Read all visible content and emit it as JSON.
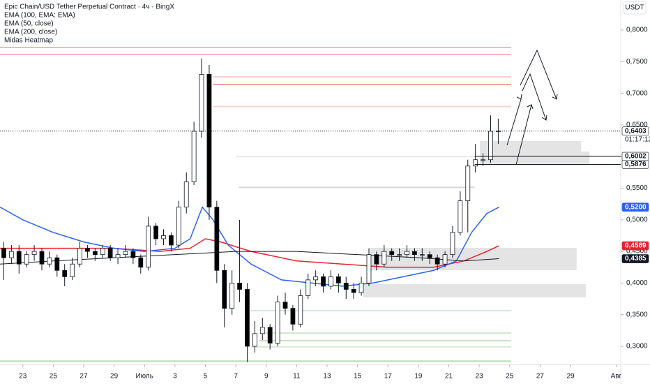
{
  "chart_data": {
    "type": "candlestick",
    "title": "Epic Chain/USD Tether Perpetual Contract · 4ч · BingX",
    "currency": "USDT",
    "xlim": [
      -1.5,
      39.3
    ],
    "ylim": [
      0.2735,
      0.8475
    ],
    "xticks": [
      {
        "value": 0,
        "label": "23"
      },
      {
        "value": 2,
        "label": "25"
      },
      {
        "value": 4,
        "label": "27"
      },
      {
        "value": 6,
        "label": "29"
      },
      {
        "value": 8,
        "label": "Июль"
      },
      {
        "value": 10,
        "label": "3"
      },
      {
        "value": 12,
        "label": "5"
      },
      {
        "value": 14,
        "label": "7"
      },
      {
        "value": 16,
        "label": "9"
      },
      {
        "value": 18,
        "label": "11"
      },
      {
        "value": 20,
        "label": "13"
      },
      {
        "value": 22,
        "label": "15"
      },
      {
        "value": 24,
        "label": "17"
      },
      {
        "value": 26,
        "label": "19"
      },
      {
        "value": 28,
        "label": "21"
      },
      {
        "value": 30,
        "label": "23"
      },
      {
        "value": 32,
        "label": "25"
      },
      {
        "value": 34,
        "label": "27"
      },
      {
        "value": 36,
        "label": "29"
      },
      {
        "value": 39,
        "label": "Авг"
      }
    ],
    "yticks": [
      {
        "value": 0.3,
        "label": "0,3000"
      },
      {
        "value": 0.35,
        "label": "0,3500"
      },
      {
        "value": 0.4,
        "label": "0,4000"
      },
      {
        "value": 0.45,
        "label": "0,4500"
      },
      {
        "value": 0.5,
        "label": "0,5000"
      },
      {
        "value": 0.55,
        "label": "0,5500"
      },
      {
        "value": 0.6,
        "label": "0,6000"
      },
      {
        "value": 0.65,
        "label": "0,6500"
      },
      {
        "value": 0.7,
        "label": "0,7000"
      },
      {
        "value": 0.75,
        "label": "0,7500"
      },
      {
        "value": 0.8,
        "label": "0,8000"
      }
    ],
    "up_color": "#ffffff",
    "down_color": "#000000",
    "x": [
      -1.25,
      -0.75,
      -0.25,
      0.25,
      0.75,
      1.25,
      1.75,
      2.25,
      2.75,
      3.25,
      3.75,
      4.25,
      4.75,
      5.25,
      5.75,
      6.25,
      6.75,
      7.25,
      7.75,
      8.25,
      8.75,
      9.25,
      9.75,
      10.25,
      10.75,
      11.25,
      11.75,
      12.25,
      12.75,
      13.25,
      13.75,
      14.25,
      14.75,
      15.25,
      15.75,
      16.25,
      16.75,
      17.25,
      17.75,
      18.25,
      18.75,
      19.25,
      19.75,
      20.25,
      20.75,
      21.25,
      21.75,
      22.25,
      22.75,
      23.25,
      23.75,
      24.25,
      24.75,
      25.25,
      25.75,
      26.25,
      26.75,
      27.25,
      27.75,
      28.25,
      28.75,
      29.25,
      29.75,
      30.25,
      30.75,
      31.25
    ],
    "open": [
      0.455,
      0.44,
      0.45,
      0.43,
      0.445,
      0.45,
      0.43,
      0.44,
      0.42,
      0.41,
      0.43,
      0.455,
      0.45,
      0.445,
      0.455,
      0.44,
      0.445,
      0.45,
      0.44,
      0.425,
      0.49,
      0.47,
      0.475,
      0.46,
      0.52,
      0.56,
      0.64,
      0.73,
      0.52,
      0.42,
      0.36,
      0.4,
      0.39,
      0.3,
      0.32,
      0.33,
      0.305,
      0.37,
      0.36,
      0.335,
      0.38,
      0.405,
      0.41,
      0.395,
      0.41,
      0.4,
      0.39,
      0.385,
      0.4,
      0.445,
      0.43,
      0.45,
      0.445,
      0.445,
      0.45,
      0.445,
      0.445,
      0.44,
      0.43,
      0.445,
      0.48,
      0.53,
      0.585,
      0.595,
      0.595,
      0.64
    ],
    "high": [
      0.465,
      0.46,
      0.46,
      0.45,
      0.46,
      0.455,
      0.45,
      0.445,
      0.43,
      0.44,
      0.465,
      0.46,
      0.455,
      0.46,
      0.46,
      0.455,
      0.46,
      0.455,
      0.445,
      0.505,
      0.495,
      0.485,
      0.48,
      0.53,
      0.575,
      0.655,
      0.755,
      0.745,
      0.53,
      0.43,
      0.42,
      0.5,
      0.4,
      0.34,
      0.345,
      0.335,
      0.38,
      0.385,
      0.365,
      0.39,
      0.415,
      0.42,
      0.415,
      0.42,
      0.415,
      0.41,
      0.4,
      0.41,
      0.455,
      0.45,
      0.46,
      0.455,
      0.455,
      0.46,
      0.455,
      0.455,
      0.45,
      0.445,
      0.45,
      0.49,
      0.545,
      0.595,
      0.62,
      0.605,
      0.665,
      0.66
    ],
    "low": [
      0.405,
      0.43,
      0.415,
      0.425,
      0.435,
      0.42,
      0.425,
      0.41,
      0.395,
      0.405,
      0.425,
      0.44,
      0.435,
      0.44,
      0.435,
      0.43,
      0.44,
      0.43,
      0.415,
      0.42,
      0.46,
      0.46,
      0.45,
      0.455,
      0.51,
      0.555,
      0.63,
      0.5,
      0.4,
      0.33,
      0.35,
      0.37,
      0.275,
      0.29,
      0.31,
      0.295,
      0.3,
      0.35,
      0.325,
      0.33,
      0.375,
      0.395,
      0.385,
      0.39,
      0.385,
      0.375,
      0.375,
      0.38,
      0.395,
      0.42,
      0.425,
      0.435,
      0.435,
      0.44,
      0.435,
      0.435,
      0.43,
      0.42,
      0.425,
      0.44,
      0.475,
      0.48,
      0.575,
      0.585,
      0.59,
      0.62
    ],
    "close": [
      0.44,
      0.45,
      0.43,
      0.445,
      0.45,
      0.43,
      0.44,
      0.42,
      0.41,
      0.43,
      0.455,
      0.45,
      0.445,
      0.455,
      0.44,
      0.445,
      0.45,
      0.44,
      0.425,
      0.49,
      0.47,
      0.475,
      0.46,
      0.52,
      0.56,
      0.64,
      0.73,
      0.52,
      0.42,
      0.36,
      0.4,
      0.39,
      0.3,
      0.32,
      0.33,
      0.305,
      0.37,
      0.36,
      0.335,
      0.38,
      0.405,
      0.41,
      0.395,
      0.41,
      0.4,
      0.39,
      0.385,
      0.4,
      0.445,
      0.43,
      0.45,
      0.445,
      0.445,
      0.45,
      0.445,
      0.445,
      0.44,
      0.43,
      0.445,
      0.48,
      0.53,
      0.585,
      0.595,
      0.595,
      0.64,
      0.6403
    ],
    "series": [
      {
        "name": "EMA (100, EMA: EMA)",
        "color": "#e8222e",
        "x": [
          -1.5,
          2,
          6,
          9,
          11,
          12,
          13,
          15,
          18,
          21,
          24,
          27,
          29,
          30.5,
          31.3
        ],
        "values": [
          0.455,
          0.455,
          0.455,
          0.45,
          0.455,
          0.47,
          0.465,
          0.45,
          0.435,
          0.43,
          0.425,
          0.425,
          0.435,
          0.45,
          0.4589
        ]
      },
      {
        "name": "EMA (50, close)",
        "color": "#2962ff",
        "x": [
          -1.5,
          0,
          2,
          4,
          6,
          8,
          10,
          11,
          11.8,
          12.5,
          13.5,
          15,
          17,
          19,
          21,
          23,
          25,
          27,
          28.5,
          29.5,
          30.5,
          31.3
        ],
        "values": [
          0.52,
          0.5,
          0.48,
          0.465,
          0.455,
          0.45,
          0.455,
          0.47,
          0.52,
          0.5,
          0.46,
          0.43,
          0.405,
          0.4,
          0.395,
          0.4,
          0.41,
          0.42,
          0.435,
          0.48,
          0.51,
          0.52
        ]
      },
      {
        "name": "EMA (200, close)",
        "color": "#131722",
        "x": [
          -1.5,
          2,
          6,
          10,
          14,
          18,
          22,
          26,
          29,
          31.3
        ],
        "values": [
          0.43,
          0.435,
          0.44,
          0.445,
          0.45,
          0.45,
          0.445,
          0.44,
          0.435,
          0.4385
        ]
      }
    ],
    "heatmap": {
      "name": "Midas Heatmap",
      "levels": [
        {
          "value": 0.7724,
          "x": [
            -1.5,
            32.1
          ],
          "color": "#f7b6b6"
        },
        {
          "value": 0.7614,
          "x": [
            -1.5,
            32.1
          ],
          "color": "#f7b6b6"
        },
        {
          "value": 0.726,
          "x": [
            12.5,
            32.1
          ],
          "color": "#f9cccc"
        },
        {
          "value": 0.714,
          "x": [
            12.5,
            32.1
          ],
          "color": "#f4a0a0"
        },
        {
          "value": 0.679,
          "x": [
            12.5,
            32.1
          ],
          "color": "#fad4d4"
        },
        {
          "value": 0.6,
          "x": [
            14,
            29.7
          ],
          "color": "#e8e8e8"
        },
        {
          "value": 0.5512,
          "x": [
            14.2,
            29.7
          ],
          "color": "#d6d6d6"
        },
        {
          "value": 0.3563,
          "x": [
            15,
            32.1
          ],
          "color": "#d6ecd6"
        },
        {
          "value": 0.321,
          "x": [
            15.9,
            32.1
          ],
          "color": "#cfe8cf"
        },
        {
          "value": 0.309,
          "x": [
            15.5,
            32.1
          ],
          "color": "#c5e3c5"
        },
        {
          "value": 0.299,
          "x": [
            15,
            32.1
          ],
          "color": "#d6ecd6"
        },
        {
          "value": 0.2765,
          "x": [
            -1.5,
            32.1
          ],
          "color": "#b9ddb9"
        }
      ],
      "zones": [
        {
          "x": [
            30.05,
            36.7
          ],
          "y": [
            0.6024,
            0.6245
          ],
          "color": "#e4e4e4"
        },
        {
          "x": [
            30.05,
            37.25
          ],
          "y": [
            0.587,
            0.608
          ],
          "color": "#e4e4e4"
        },
        {
          "x": [
            22.8,
            36.4
          ],
          "y": [
            0.4203,
            0.4556
          ],
          "color": "#e4e4e4"
        },
        {
          "x": [
            22.35,
            37.0
          ],
          "y": [
            0.3773,
            0.3982
          ],
          "color": "#e4e4e4"
        }
      ]
    },
    "price_labels": [
      {
        "value": 0.6403,
        "label": "0,6403",
        "bg": "#ffffff",
        "fg": "#131722",
        "line_from": -1.5,
        "dash": true
      },
      {
        "value": 0.6002,
        "label": "0,6002",
        "bg": "#ffffff",
        "fg": "#131722",
        "line_from": 29.7
      },
      {
        "value": 0.5876,
        "label": "0,5876",
        "bg": "#ffffff",
        "fg": "#131722",
        "line_from": 29.7
      },
      {
        "value": 0.52,
        "label": "0,5200",
        "bg": "#2962ff",
        "fg": "#ffffff"
      },
      {
        "value": 0.4589,
        "label": "0,4589",
        "bg": "#e8222e",
        "fg": "#ffffff"
      },
      {
        "value": 0.4385,
        "label": "0,4385",
        "bg": "#131722",
        "fg": "#ffffff"
      }
    ],
    "countdown": "01:17:12"
  }
}
